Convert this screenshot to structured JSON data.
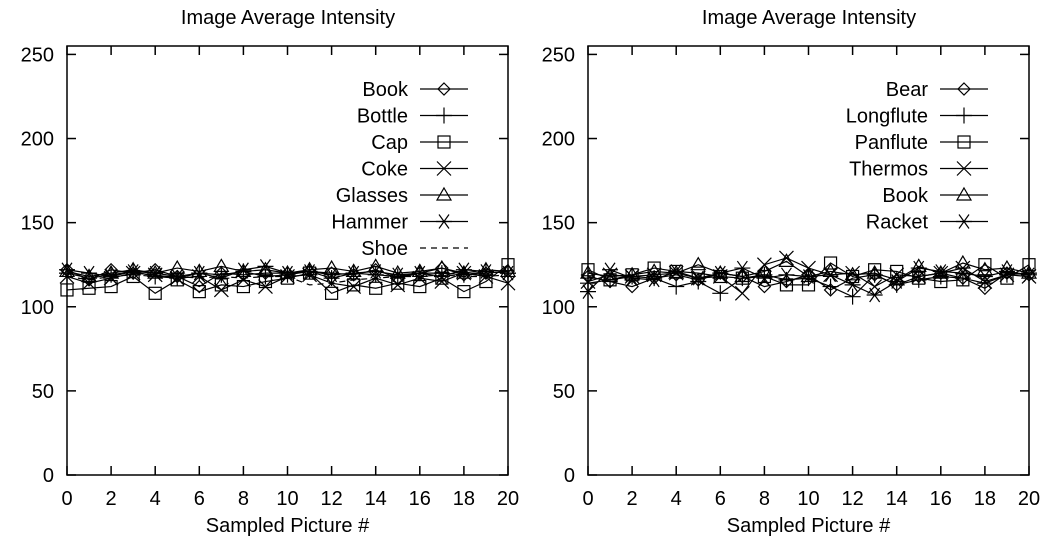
{
  "chart_data": [
    {
      "type": "line",
      "title": "Image Average Intensity",
      "xlabel": "Sampled Picture #",
      "ylabel": "",
      "xlim": [
        0,
        20
      ],
      "ylim": [
        0,
        255
      ],
      "xticks": [
        0,
        2,
        4,
        6,
        8,
        10,
        12,
        14,
        16,
        18,
        20
      ],
      "yticks": [
        0,
        50,
        100,
        150,
        200,
        250
      ],
      "grid": false,
      "legend_position": "top-right",
      "x": [
        0,
        1,
        2,
        3,
        4,
        5,
        6,
        7,
        8,
        9,
        10,
        11,
        12,
        13,
        14,
        15,
        16,
        17,
        18,
        19,
        20
      ],
      "series": [
        {
          "name": "Book",
          "marker": "diamond",
          "values": [
            122,
            116,
            122,
            120,
            122,
            118,
            112,
            120,
            119,
            120,
            120,
            121,
            120,
            119,
            122,
            117,
            120,
            123,
            119,
            120,
            121
          ]
        },
        {
          "name": "Bottle",
          "marker": "plus",
          "values": [
            120,
            117,
            119,
            121,
            118,
            117,
            120,
            119,
            121,
            118,
            119,
            121,
            117,
            120,
            119,
            118,
            120,
            120,
            119,
            121,
            120
          ]
        },
        {
          "name": "Cap",
          "marker": "square",
          "values": [
            110,
            111,
            112,
            118,
            108,
            116,
            109,
            113,
            112,
            115,
            117,
            120,
            108,
            113,
            111,
            114,
            112,
            117,
            109,
            115,
            125
          ]
        },
        {
          "name": "Coke",
          "marker": "x",
          "values": [
            118,
            114,
            117,
            120,
            119,
            117,
            118,
            110,
            116,
            112,
            118,
            119,
            114,
            112,
            117,
            113,
            117,
            115,
            120,
            118,
            114
          ]
        },
        {
          "name": "Glasses",
          "marker": "triangle",
          "values": [
            121,
            118,
            120,
            122,
            120,
            123,
            121,
            124,
            121,
            122,
            120,
            122,
            123,
            121,
            124,
            120,
            121,
            123,
            120,
            122,
            121
          ]
        },
        {
          "name": "Hammer",
          "marker": "asterisk",
          "values": [
            122,
            120,
            118,
            121,
            120,
            118,
            120,
            117,
            122,
            124,
            120,
            121,
            119,
            120,
            121,
            119,
            120,
            118,
            122,
            121,
            120
          ]
        },
        {
          "name": "Shoe",
          "marker": "none",
          "dashed": true,
          "values": [
            118,
            116,
            118,
            119,
            118,
            118,
            117,
            118,
            117,
            118,
            118,
            113,
            114,
            116,
            117,
            118,
            118,
            119,
            118,
            118,
            119
          ]
        }
      ]
    },
    {
      "type": "line",
      "title": "Image Average Intensity",
      "xlabel": "Sampled Picture #",
      "ylabel": "",
      "xlim": [
        0,
        20
      ],
      "ylim": [
        0,
        255
      ],
      "xticks": [
        0,
        2,
        4,
        6,
        8,
        10,
        12,
        14,
        16,
        18,
        20
      ],
      "yticks": [
        0,
        50,
        100,
        150,
        200,
        250
      ],
      "grid": false,
      "legend_position": "top-right",
      "x": [
        0,
        1,
        2,
        3,
        4,
        5,
        6,
        7,
        8,
        9,
        10,
        11,
        12,
        13,
        14,
        15,
        16,
        17,
        18,
        19,
        20
      ],
      "series": [
        {
          "name": "Bear",
          "marker": "diamond",
          "values": [
            118,
            115,
            112,
            117,
            119,
            116,
            120,
            118,
            112,
            115,
            119,
            110,
            117,
            119,
            113,
            118,
            120,
            117,
            111,
            120,
            119
          ]
        },
        {
          "name": "Longflute",
          "marker": "plus",
          "values": [
            114,
            116,
            118,
            117,
            112,
            115,
            108,
            117,
            119,
            116,
            117,
            112,
            106,
            119,
            113,
            116,
            118,
            117,
            114,
            119,
            120
          ]
        },
        {
          "name": "Panflute",
          "marker": "square",
          "values": [
            122,
            116,
            119,
            123,
            121,
            120,
            118,
            117,
            118,
            113,
            113,
            126,
            118,
            122,
            121,
            117,
            115,
            116,
            125,
            117,
            125
          ]
        },
        {
          "name": "Thermos",
          "marker": "x",
          "values": [
            115,
            119,
            118,
            119,
            120,
            117,
            118,
            108,
            125,
            129,
            123,
            119,
            120,
            112,
            119,
            118,
            120,
            123,
            115,
            119,
            118
          ]
        },
        {
          "name": "Book",
          "marker": "triangle",
          "values": [
            120,
            118,
            119,
            121,
            120,
            125,
            120,
            118,
            121,
            127,
            118,
            121,
            119,
            120,
            116,
            124,
            120,
            126,
            122,
            123,
            120
          ]
        },
        {
          "name": "Racket",
          "marker": "asterisk",
          "values": [
            109,
            122,
            117,
            116,
            121,
            117,
            120,
            123,
            117,
            119,
            118,
            119,
            113,
            107,
            115,
            123,
            121,
            120,
            118,
            121,
            119
          ]
        }
      ]
    }
  ]
}
